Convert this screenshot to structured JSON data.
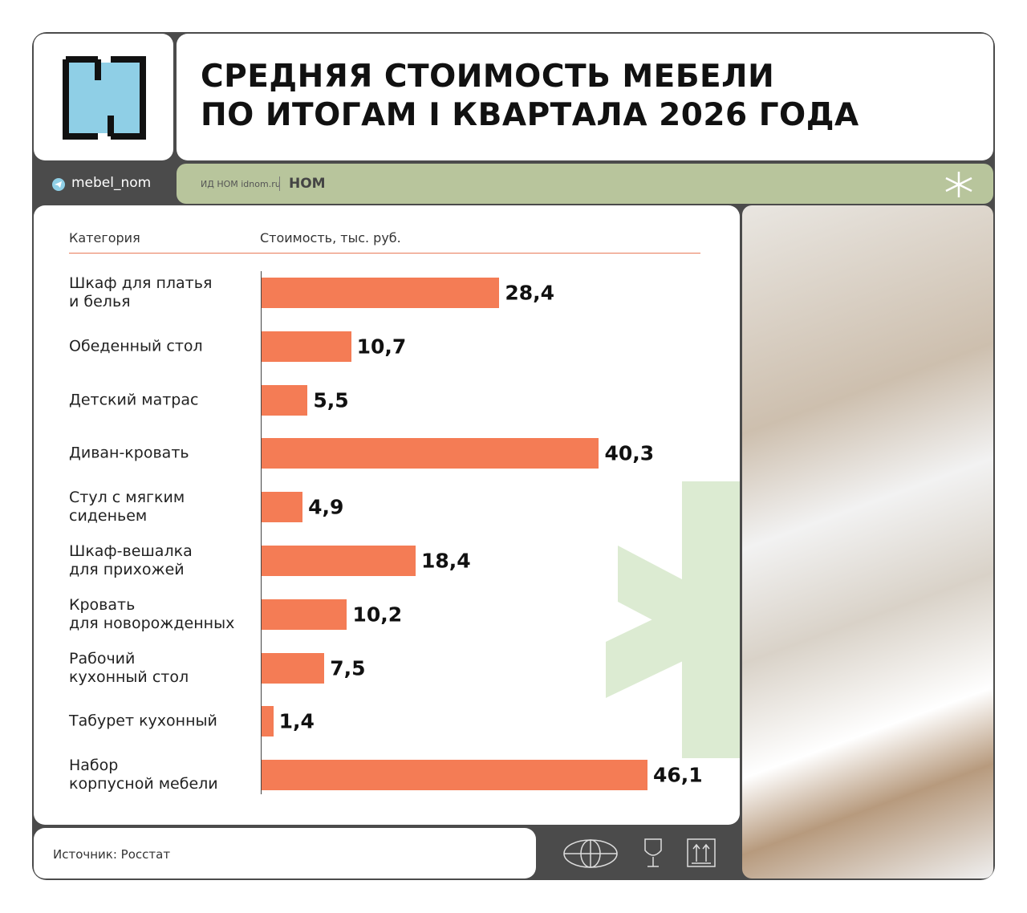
{
  "header": {
    "title": "СРЕДНЯЯ СТОИМОСТЬ МЕБЕЛИ\nПО ИТОГАМ I КВАРТАЛА 2026 ГОДА",
    "channel": "mebel_nom",
    "publisher": "ИД НОМ idnom.ru",
    "brand": "НОМ"
  },
  "chart_data": {
    "type": "hbar",
    "category_header": "Категория",
    "value_header": "Стоимость, тыс. руб.",
    "categories": [
      "Шкаф для платья\nи белья",
      "Обеденный стол",
      "Детский матрас",
      "Диван-кровать",
      "Стул с мягким\nсиденьем",
      "Шкаф-вешалка\nдля прихожей",
      "Кровать\nдля новорожденных",
      "Рабочий\nкухонный стол",
      "Табурет кухонный",
      "Набор\nкорпусной мебели"
    ],
    "values": [
      28.4,
      10.7,
      5.5,
      40.3,
      4.9,
      18.4,
      10.2,
      7.5,
      1.4,
      46.1
    ],
    "value_labels": [
      "28,4",
      "10,7",
      "5,5",
      "40,3",
      "4,9",
      "18,4",
      "10,2",
      "7,5",
      "1,4",
      "46,1"
    ],
    "color": "#f47c55"
  },
  "footer": {
    "source": "Источник: Росстат"
  }
}
